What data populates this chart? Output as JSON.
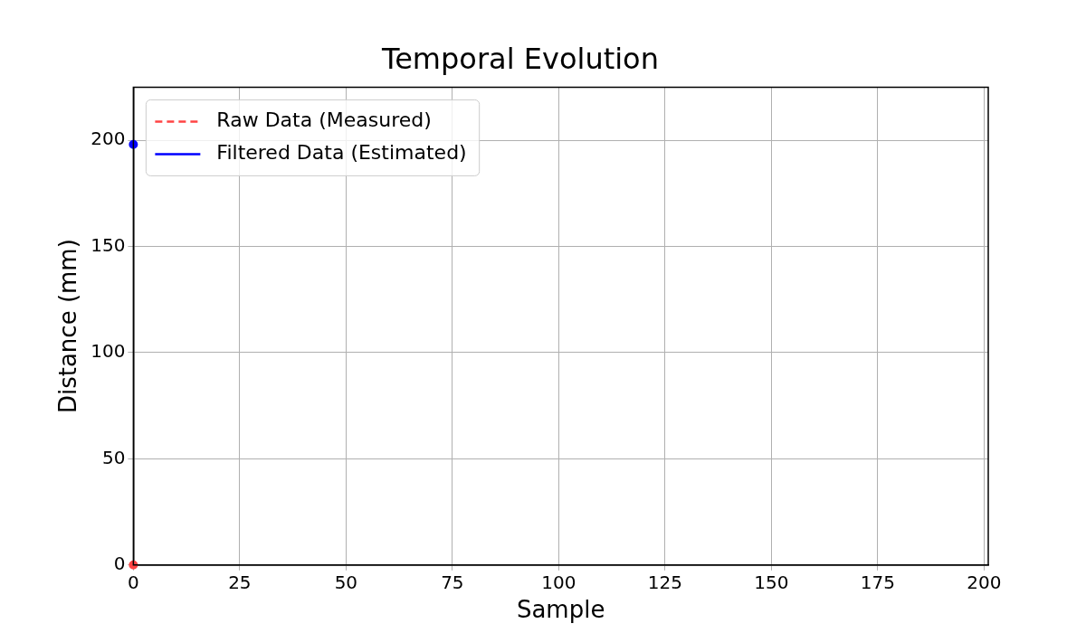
{
  "chart_data": {
    "type": "line",
    "title": "Temporal Evolution",
    "xlabel": "Sample",
    "ylabel": "Distance (mm)",
    "series": [
      {
        "name": "Raw Data (Measured)",
        "color": "#ff4444",
        "line_style": "dashed",
        "x": [
          0
        ],
        "values": [
          0
        ]
      },
      {
        "name": "Filtered Data (Estimated)",
        "color": "#0000ff",
        "line_style": "solid",
        "x": [
          0
        ],
        "values": [
          198
        ]
      }
    ],
    "marker": "circle",
    "xlim": [
      0,
      201
    ],
    "xticks": [
      0,
      25,
      50,
      75,
      100,
      125,
      150,
      175,
      200
    ],
    "ylim": [
      0,
      225
    ],
    "yticks": [
      0,
      50,
      100,
      150,
      200
    ],
    "grid": true,
    "legend": "top left"
  }
}
